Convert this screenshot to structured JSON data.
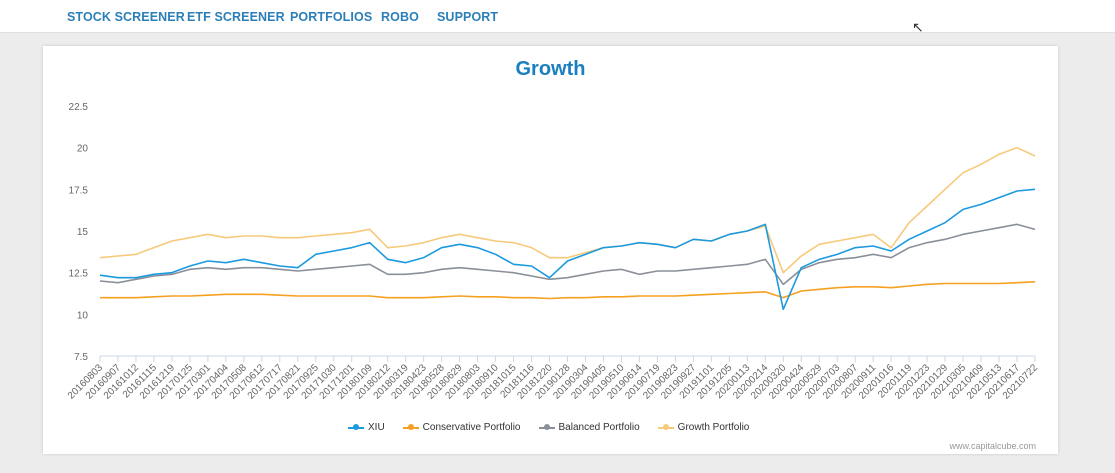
{
  "nav": {
    "items": [
      "STOCK SCREENER",
      "ETF SCREENER",
      "PORTFOLIOS",
      "ROBO",
      "SUPPORT"
    ]
  },
  "watermark": "www.capitalcube.com",
  "chart_data": {
    "type": "line",
    "title": "Growth",
    "xlabel": "",
    "ylabel": "",
    "ylim": [
      7.5,
      22.5
    ],
    "yticks": [
      "7.5",
      "10",
      "12.5",
      "15",
      "17.5",
      "20",
      "22.5"
    ],
    "legend_position": "bottom",
    "x": [
      "20160803",
      "20160907",
      "20161012",
      "20161115",
      "20161219",
      "20170125",
      "20170301",
      "20170404",
      "20170508",
      "20170612",
      "20170717",
      "20170821",
      "20170925",
      "20171030",
      "20171201",
      "20180109",
      "20180212",
      "20180319",
      "20180423",
      "20180528",
      "20180629",
      "20180803",
      "20180910",
      "20181015",
      "20181116",
      "20181220",
      "20190128",
      "20190304",
      "20190405",
      "20190510",
      "20190614",
      "20190719",
      "20190823",
      "20190927",
      "20191101",
      "20191205",
      "20200113",
      "20200214",
      "20200320",
      "20200424",
      "20200529",
      "20200703",
      "20200807",
      "20200911",
      "20201016",
      "20201119",
      "20201223",
      "20210129",
      "20210305",
      "20210409",
      "20210513",
      "20210617",
      "20210722"
    ],
    "series": [
      {
        "name": "XIU",
        "color": "#1b9ae0",
        "values": [
          12.35,
          12.2,
          12.2,
          12.4,
          12.5,
          12.9,
          13.2,
          13.1,
          13.3,
          13.1,
          12.9,
          12.8,
          13.6,
          13.8,
          14.0,
          14.3,
          13.3,
          13.1,
          13.4,
          14.0,
          14.2,
          14.0,
          13.6,
          13.0,
          12.9,
          12.2,
          13.2,
          13.6,
          14.0,
          14.1,
          14.3,
          14.2,
          14.0,
          14.5,
          14.4,
          14.8,
          15.0,
          15.4,
          10.3,
          12.8,
          13.3,
          13.6,
          14.0,
          14.1,
          13.8,
          14.5,
          15.0,
          15.5,
          16.3,
          16.6,
          17.0,
          17.4,
          17.5
        ]
      },
      {
        "name": "Conservative Portfolio",
        "color": "#f5a020",
        "values": [
          11.0,
          11.0,
          11.0,
          11.05,
          11.1,
          11.1,
          11.15,
          11.2,
          11.2,
          11.2,
          11.15,
          11.1,
          11.1,
          11.1,
          11.1,
          11.1,
          11.0,
          11.0,
          11.0,
          11.05,
          11.1,
          11.05,
          11.05,
          11.0,
          11.0,
          10.95,
          11.0,
          11.0,
          11.05,
          11.05,
          11.1,
          11.1,
          11.1,
          11.15,
          11.2,
          11.25,
          11.3,
          11.35,
          11.0,
          11.4,
          11.5,
          11.6,
          11.65,
          11.65,
          11.6,
          11.7,
          11.8,
          11.85,
          11.85,
          11.85,
          11.85,
          11.9,
          11.95
        ]
      },
      {
        "name": "Balanced Portfolio",
        "color": "#8a8f99",
        "values": [
          12.0,
          11.9,
          12.1,
          12.3,
          12.4,
          12.7,
          12.8,
          12.7,
          12.8,
          12.8,
          12.7,
          12.6,
          12.7,
          12.8,
          12.9,
          13.0,
          12.4,
          12.4,
          12.5,
          12.7,
          12.8,
          12.7,
          12.6,
          12.5,
          12.3,
          12.1,
          12.2,
          12.4,
          12.6,
          12.7,
          12.4,
          12.6,
          12.6,
          12.7,
          12.8,
          12.9,
          13.0,
          13.3,
          11.8,
          12.7,
          13.1,
          13.3,
          13.4,
          13.6,
          13.4,
          14.0,
          14.3,
          14.5,
          14.8,
          15.0,
          15.2,
          15.4,
          15.1
        ]
      },
      {
        "name": "Growth Portfolio",
        "color": "#f7c97a",
        "values": [
          13.4,
          13.5,
          13.6,
          14.0,
          14.4,
          14.6,
          14.8,
          14.6,
          14.7,
          14.7,
          14.6,
          14.6,
          14.7,
          14.8,
          14.9,
          15.1,
          14.0,
          14.1,
          14.3,
          14.6,
          14.8,
          14.6,
          14.4,
          14.3,
          14.0,
          13.4,
          13.4,
          13.7,
          14.0,
          14.1,
          14.3,
          14.2,
          14.0,
          14.5,
          14.4,
          14.8,
          15.0,
          15.3,
          12.5,
          13.5,
          14.2,
          14.4,
          14.6,
          14.8,
          14.0,
          15.5,
          16.5,
          17.5,
          18.5,
          19.0,
          19.6,
          20.0,
          19.5
        ]
      }
    ]
  }
}
